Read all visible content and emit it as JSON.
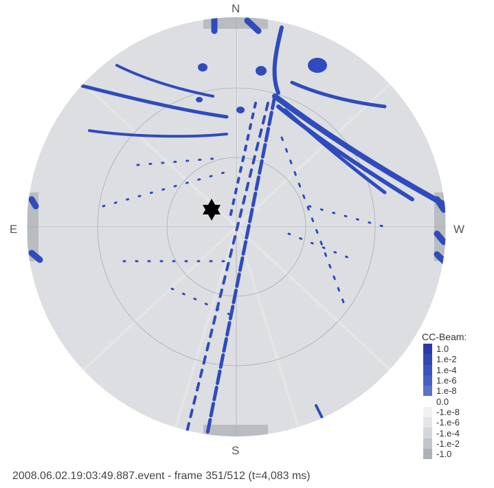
{
  "compass": {
    "north": "N",
    "east": "E",
    "west": "W",
    "south": "S"
  },
  "legend": {
    "title": "CC-Beam:",
    "items": [
      {
        "label": "1.0",
        "color": "#2b3aa8"
      },
      {
        "label": "1.e-2",
        "color": "#3347b4"
      },
      {
        "label": "1.e-4",
        "color": "#3a53bd"
      },
      {
        "label": "1.e-6",
        "color": "#4660c4"
      },
      {
        "label": "1.e-8",
        "color": "#5a72cc"
      },
      {
        "label": "0.0",
        "color": "#ffffff"
      },
      {
        "label": "-1.e-8",
        "color": "#f0f1f2"
      },
      {
        "label": "-1.e-6",
        "color": "#e2e4e6"
      },
      {
        "label": "-1.e-4",
        "color": "#d4d6d9"
      },
      {
        "label": "-1.e-2",
        "color": "#c2c5c9"
      },
      {
        "label": "-1.0",
        "color": "#aeb1b6"
      }
    ]
  },
  "caption": "2008.06.02.19:03:49.887.event - frame 351/512 (t=4,083 ms)",
  "colors": {
    "sky": "#dcdee1",
    "beam": "#2f4bbd",
    "grid": "#a9acb0"
  },
  "marker_icon": "star-of-david-icon"
}
